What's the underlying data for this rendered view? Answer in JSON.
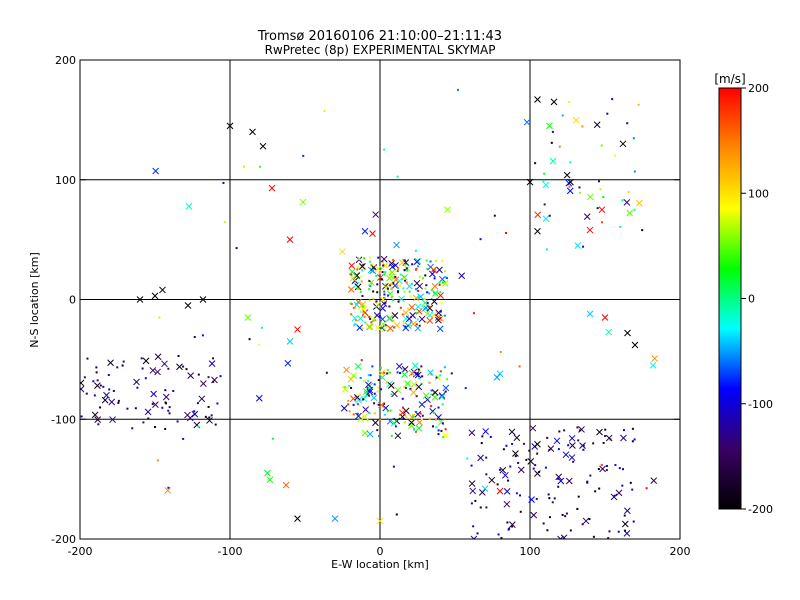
{
  "chart_data": {
    "type": "scatter",
    "title": "Tromsø 20160106 21:10:00–21:11:43",
    "subtitle": "RwPretec (8p) EXPERIMENTAL SKYMAP",
    "xlabel": "E-W location [km]",
    "ylabel": "N-S location [km]",
    "xlim": [
      -200,
      200
    ],
    "ylim": [
      -200,
      200
    ],
    "x_ticks": [
      "-200",
      "-100",
      "0",
      "100",
      "200"
    ],
    "y_ticks": [
      "-200",
      "-100",
      "0",
      "100",
      "200"
    ],
    "grid": true,
    "grid_lines": {
      "x": [
        -100,
        0,
        100
      ],
      "y": [
        -100,
        0,
        100
      ]
    },
    "colorbar": {
      "label": "[m/s]",
      "range": [
        -200,
        200
      ],
      "ticks": [
        "200",
        "100",
        "0",
        "-100",
        "-200"
      ],
      "colors": [
        "#000000",
        "#3a0066",
        "#0000ff",
        "#00ffff",
        "#00ff00",
        "#ffff00",
        "#ff8800",
        "#ff0000"
      ]
    },
    "marker_legend": {
      "cross": "x marker",
      "dot": "dot marker"
    },
    "clusters": [
      {
        "name": "center-upper",
        "x": [
          -20,
          45
        ],
        "y": [
          -25,
          35
        ],
        "count": 280,
        "vmin": -200,
        "vmax": 200
      },
      {
        "name": "center-lower",
        "x": [
          -25,
          45
        ],
        "y": [
          -115,
          -55
        ],
        "count": 170,
        "vmin": -200,
        "vmax": 200
      },
      {
        "name": "left-west",
        "x": [
          -200,
          -105
        ],
        "y": [
          -110,
          -45
        ],
        "count": 90,
        "vmin": -200,
        "vmax": -100
      },
      {
        "name": "bottom-right",
        "x": [
          60,
          170
        ],
        "y": [
          -200,
          -105
        ],
        "count": 140,
        "vmin": -200,
        "vmax": -80
      },
      {
        "name": "top-right",
        "x": [
          100,
          175
        ],
        "y": [
          55,
          170
        ],
        "count": 40,
        "vmin": -200,
        "vmax": 200
      },
      {
        "name": "scatter",
        "x": [
          -150,
          190
        ],
        "y": [
          -190,
          160
        ],
        "count": 70,
        "vmin": -200,
        "vmax": 200
      }
    ],
    "points": [
      {
        "x": -100,
        "y": 145,
        "v": -200,
        "marker": "x"
      },
      {
        "x": -85,
        "y": 140,
        "v": -200,
        "marker": "x"
      },
      {
        "x": -78,
        "y": 128,
        "v": -200,
        "marker": "x"
      },
      {
        "x": -72,
        "y": 93,
        "v": 200,
        "marker": "x"
      },
      {
        "x": 52,
        "y": 175,
        "v": -60,
        "marker": "dot"
      },
      {
        "x": 98,
        "y": 148,
        "v": -60,
        "marker": "x"
      },
      {
        "x": 105,
        "y": 167,
        "v": -200,
        "marker": "x"
      },
      {
        "x": 116,
        "y": 165,
        "v": -200,
        "marker": "x"
      },
      {
        "x": 113,
        "y": 145,
        "v": 30,
        "marker": "x"
      },
      {
        "x": 148,
        "y": 75,
        "v": 200,
        "marker": "x"
      },
      {
        "x": 140,
        "y": 58,
        "v": 200,
        "marker": "x"
      },
      {
        "x": 162,
        "y": 130,
        "v": -200,
        "marker": "x"
      },
      {
        "x": 182,
        "y": -55,
        "v": -30,
        "marker": "x"
      },
      {
        "x": 140,
        "y": -12,
        "v": -40,
        "marker": "x"
      },
      {
        "x": 150,
        "y": -15,
        "v": 200,
        "marker": "x"
      },
      {
        "x": 165,
        "y": -28,
        "v": -200,
        "marker": "x"
      },
      {
        "x": 170,
        "y": -38,
        "v": -200,
        "marker": "x"
      },
      {
        "x": 128,
        "y": -132,
        "v": -110,
        "marker": "x"
      },
      {
        "x": 118,
        "y": -118,
        "v": -90,
        "marker": "x"
      },
      {
        "x": 135,
        "y": -122,
        "v": -120,
        "marker": "x"
      },
      {
        "x": -60,
        "y": 50,
        "v": 200,
        "marker": "x"
      },
      {
        "x": -55,
        "y": -25,
        "v": 200,
        "marker": "x"
      },
      {
        "x": -60,
        "y": -35,
        "v": -40,
        "marker": "x"
      },
      {
        "x": -88,
        "y": -15,
        "v": 50,
        "marker": "x"
      },
      {
        "x": -75,
        "y": -145,
        "v": 20,
        "marker": "x"
      },
      {
        "x": -55,
        "y": -183,
        "v": -200,
        "marker": "x"
      },
      {
        "x": -30,
        "y": -183,
        "v": -50,
        "marker": "x"
      },
      {
        "x": 0,
        "y": -185,
        "v": 100,
        "marker": "x"
      },
      {
        "x": 45,
        "y": 75,
        "v": 60,
        "marker": "x"
      },
      {
        "x": 80,
        "y": -62,
        "v": -40,
        "marker": "x"
      },
      {
        "x": 78,
        "y": -65,
        "v": -50,
        "marker": "x"
      },
      {
        "x": 70,
        "y": -158,
        "v": -40,
        "marker": "x"
      },
      {
        "x": 80,
        "y": -160,
        "v": 200,
        "marker": "x"
      },
      {
        "x": -150,
        "y": 3,
        "v": -200,
        "marker": "x"
      },
      {
        "x": -145,
        "y": 8,
        "v": -200,
        "marker": "x"
      },
      {
        "x": -128,
        "y": -5,
        "v": -200,
        "marker": "x"
      },
      {
        "x": -118,
        "y": 0,
        "v": -200,
        "marker": "x"
      },
      {
        "x": -160,
        "y": 0,
        "v": -200,
        "marker": "x"
      },
      {
        "x": -25,
        "y": 40,
        "v": 100,
        "marker": "x"
      },
      {
        "x": -10,
        "y": 57,
        "v": -80,
        "marker": "x"
      },
      {
        "x": -5,
        "y": 55,
        "v": 200,
        "marker": "x"
      },
      {
        "x": 105,
        "y": 57,
        "v": -200,
        "marker": "x"
      },
      {
        "x": 100,
        "y": 98,
        "v": -200,
        "marker": "x"
      },
      {
        "x": 127,
        "y": 98,
        "v": -200,
        "marker": "x"
      }
    ]
  }
}
